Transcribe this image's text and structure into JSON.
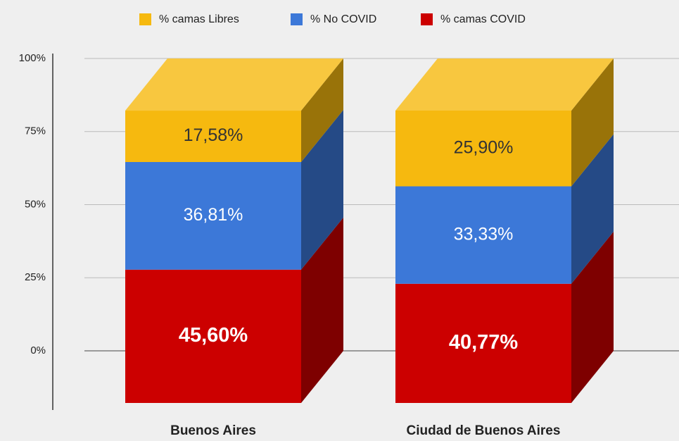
{
  "chart_data": {
    "type": "bar3d_stacked",
    "categories": [
      "Buenos Aires",
      "Ciudad de Buenos Aires"
    ],
    "series": [
      {
        "name": "% camas COVID",
        "color": "#cc0000",
        "label_color": "#ffffff",
        "values": [
          45.6,
          40.77
        ],
        "value_labels": [
          "45,60%",
          "40,77%"
        ]
      },
      {
        "name": "% No COVID",
        "color": "#3c78d8",
        "label_color": "#ffffff",
        "values": [
          36.81,
          33.33
        ],
        "value_labels": [
          "36,81%",
          "33,33%"
        ]
      },
      {
        "name": "% camas Libres",
        "color": "#f6b90f",
        "label_color": "#333333",
        "values": [
          17.58,
          25.9
        ],
        "value_labels": [
          "17,58%",
          "25,90%"
        ]
      }
    ],
    "ylim": [
      0,
      100
    ],
    "yticks": [
      {
        "value": 0,
        "label": "0%"
      },
      {
        "value": 25,
        "label": "25%"
      },
      {
        "value": 50,
        "label": "50%"
      },
      {
        "value": 75,
        "label": "75%"
      },
      {
        "value": 100,
        "label": "100%"
      }
    ],
    "grid": true,
    "legend": "top"
  }
}
